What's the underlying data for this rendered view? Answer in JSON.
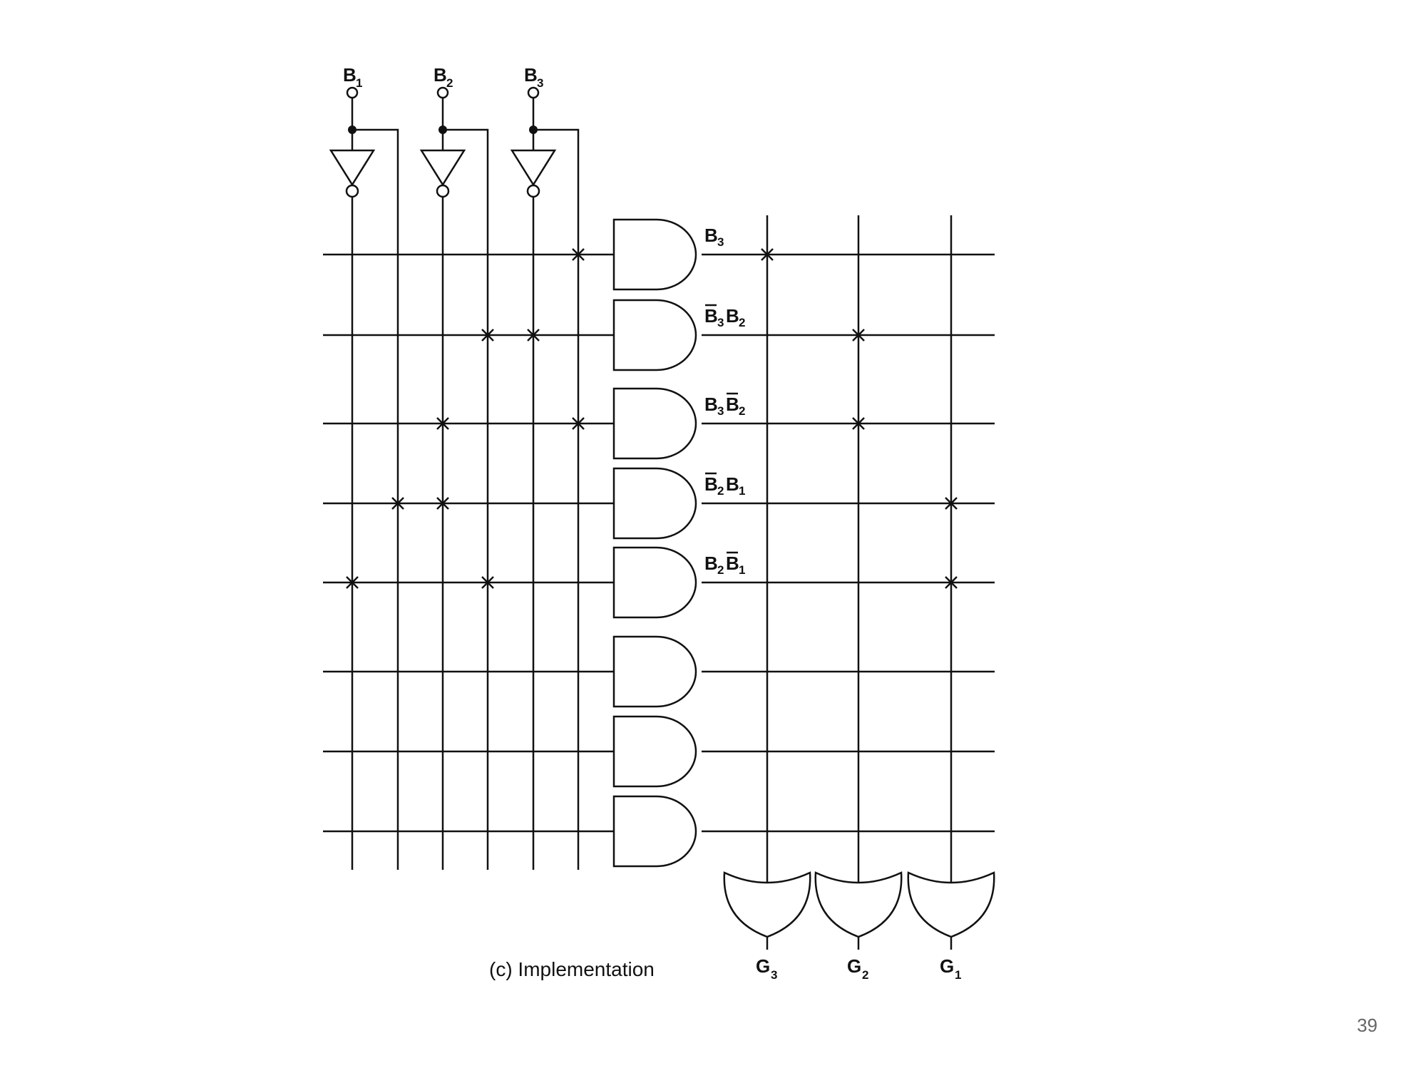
{
  "inputs": [
    {
      "letter": "B",
      "sub": "1"
    },
    {
      "letter": "B",
      "sub": "2"
    },
    {
      "letter": "B",
      "sub": "3"
    }
  ],
  "products": [
    {
      "terms": [
        {
          "letter": "B",
          "sub": "3",
          "bar": false
        }
      ]
    },
    {
      "terms": [
        {
          "letter": "B",
          "sub": "3",
          "bar": true
        },
        {
          "letter": "B",
          "sub": "2",
          "bar": false
        }
      ]
    },
    {
      "terms": [
        {
          "letter": "B",
          "sub": "3",
          "bar": false
        },
        {
          "letter": "B",
          "sub": "2",
          "bar": true
        }
      ]
    },
    {
      "terms": [
        {
          "letter": "B",
          "sub": "2",
          "bar": true
        },
        {
          "letter": "B",
          "sub": "1",
          "bar": false
        }
      ]
    },
    {
      "terms": [
        {
          "letter": "B",
          "sub": "2",
          "bar": false
        },
        {
          "letter": "B",
          "sub": "1",
          "bar": true
        }
      ]
    },
    {
      "terms": []
    },
    {
      "terms": []
    },
    {
      "terms": []
    }
  ],
  "outputs": [
    {
      "letter": "G",
      "sub": "3"
    },
    {
      "letter": "G",
      "sub": "2"
    },
    {
      "letter": "G",
      "sub": "1"
    }
  ],
  "and_connections": [
    {
      "row": 0,
      "line": "B3"
    },
    {
      "row": 1,
      "line": "B2"
    },
    {
      "row": 1,
      "line": "B3'"
    },
    {
      "row": 2,
      "line": "B2'"
    },
    {
      "row": 2,
      "line": "B3"
    },
    {
      "row": 3,
      "line": "B1"
    },
    {
      "row": 3,
      "line": "B2'"
    },
    {
      "row": 4,
      "line": "B1'"
    },
    {
      "row": 4,
      "line": "B2"
    }
  ],
  "or_connections": [
    {
      "row": 0,
      "output": 0
    },
    {
      "row": 1,
      "output": 1
    },
    {
      "row": 2,
      "output": 1
    },
    {
      "row": 3,
      "output": 2
    },
    {
      "row": 4,
      "output": 2
    }
  ],
  "caption": "(c) Implementation",
  "page_number": "39"
}
